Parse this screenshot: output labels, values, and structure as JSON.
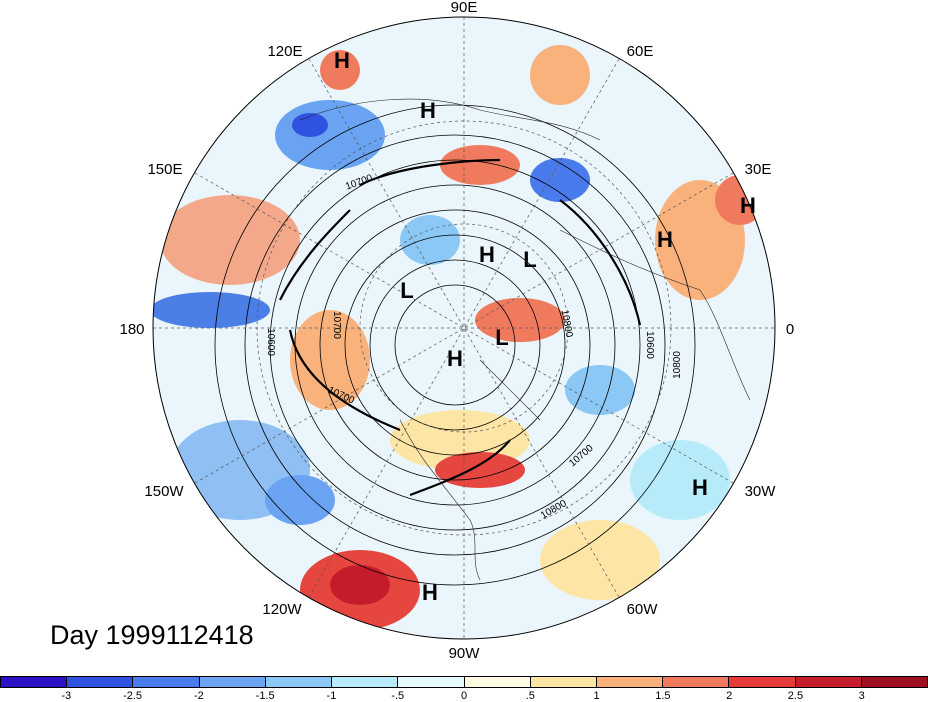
{
  "title": "Day 1999112418",
  "longitude_labels": [
    "90E",
    "60E",
    "30E",
    "0",
    "30W",
    "60W",
    "90W",
    "120W",
    "150W",
    "180",
    "150E",
    "120E"
  ],
  "highs_lows": [
    "H",
    "H",
    "H",
    "L",
    "L",
    "L",
    "H",
    "H",
    "H",
    "H",
    "H"
  ],
  "contour_labels": [
    "10700",
    "10600",
    "10800",
    "10700",
    "10800",
    "10600",
    "10700",
    "10700",
    "10800"
  ],
  "colorbar": {
    "colors": [
      "#2a11c4",
      "#2f52e0",
      "#4a7bec",
      "#6aa3f2",
      "#8cc8f5",
      "#b7ebfa",
      "#e6f9fb",
      "#fffbe2",
      "#fde6a5",
      "#f9b27c",
      "#f07a5d",
      "#e43b3b",
      "#c41c2b",
      "#9e0f22"
    ],
    "labels": [
      "-3",
      "-2.5",
      "-2",
      "-1.5",
      "-1",
      "-.5",
      "0",
      ".5",
      "1",
      "1.5",
      "2",
      "2.5",
      "3"
    ]
  }
}
